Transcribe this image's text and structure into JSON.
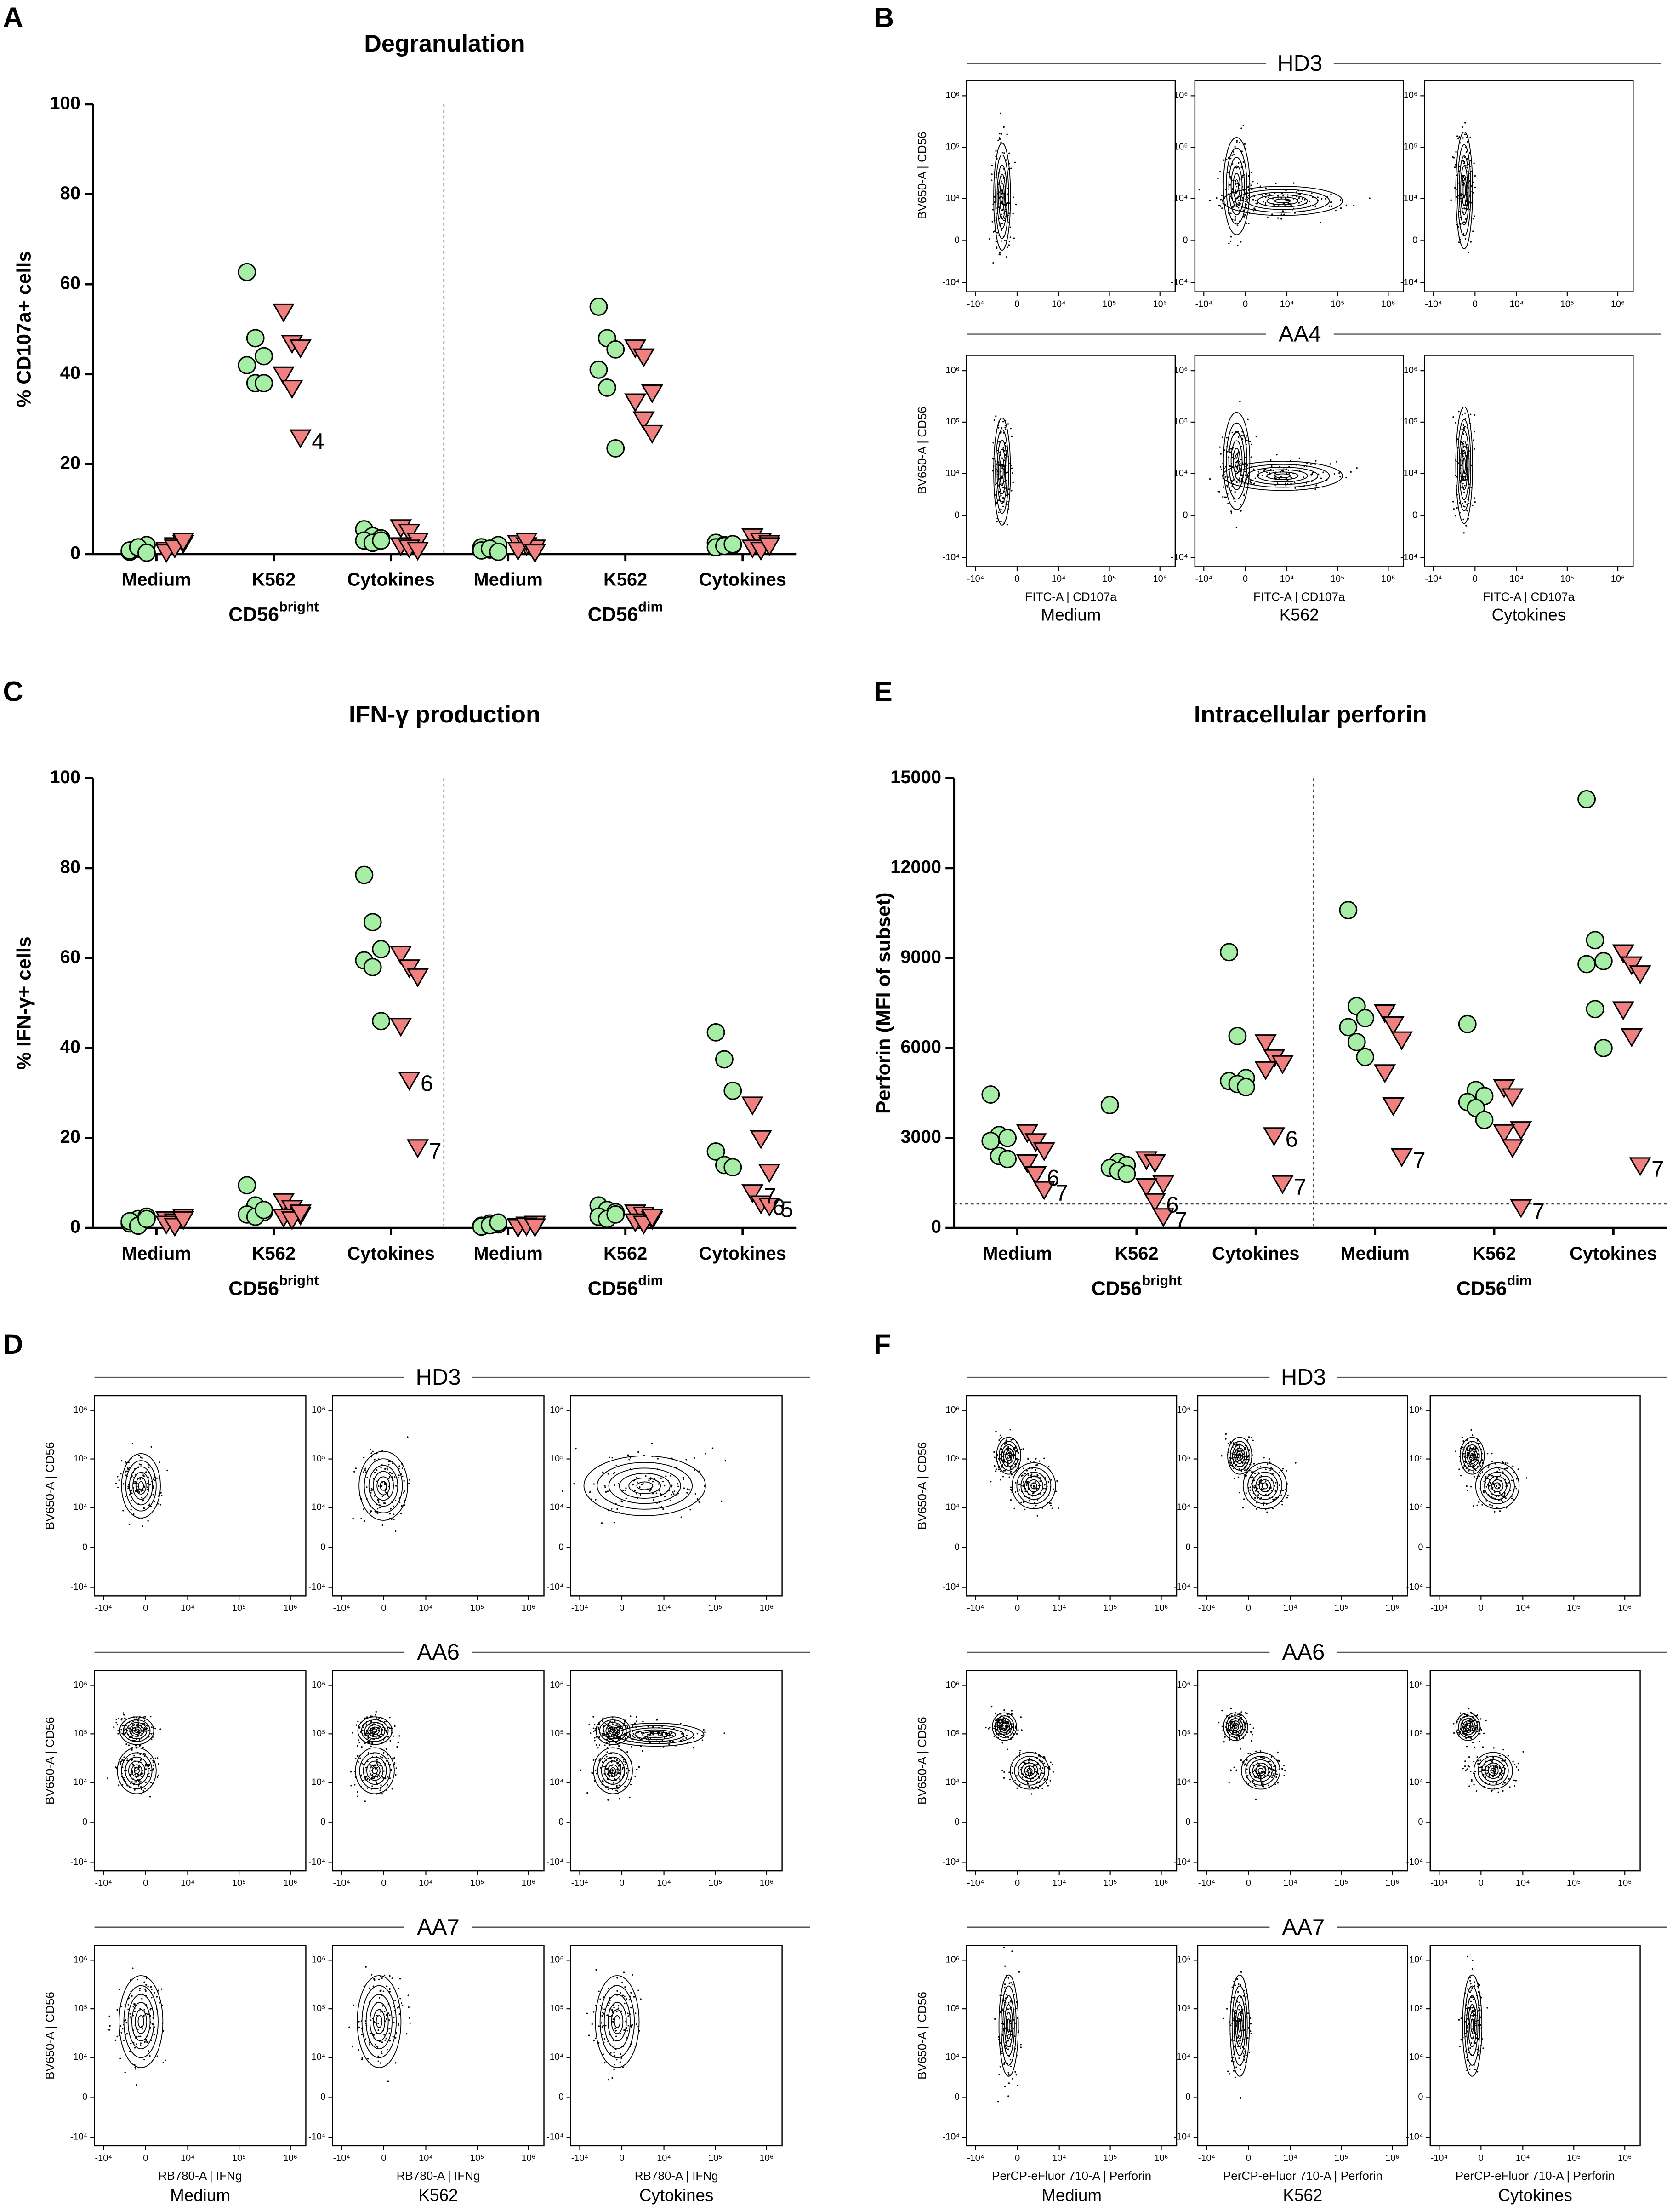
{
  "chart_data": [
    {
      "type": "dot",
      "panel": "A",
      "title": "Degranulation",
      "ylabel": "% CD107a+ cells",
      "categories": [
        "Medium",
        "K562",
        "Cytokines",
        "Medium",
        "K562",
        "Cytokines"
      ],
      "groups": [
        {
          "text": "CD56",
          "sup": "bright"
        },
        {
          "text": "CD56",
          "sup": "dim"
        }
      ],
      "ylim": [
        0,
        100
      ],
      "yticks": [
        0,
        20,
        40,
        60,
        80,
        100
      ],
      "series": [
        {
          "color": "#a6eea6",
          "marker": "circle",
          "values": [
            [
              0.5,
              1.2,
              2,
              0.8,
              1.5,
              0.3
            ],
            [
              62.7,
              48,
              44,
              42,
              38,
              38
            ],
            [
              5.5,
              4,
              3.5,
              3,
              2.5,
              3
            ],
            [
              1.5,
              1,
              2,
              0.8,
              1.2,
              0.5
            ],
            [
              55,
              48,
              45.5,
              41,
              37,
              23.5
            ],
            [
              2.5,
              2,
              2,
              1.5,
              1.8,
              2.2
            ]
          ]
        },
        {
          "color": "#f08080",
          "marker": "triangle",
          "values": [
            [
              1,
              2,
              2.5,
              0.5,
              1.5,
              3
            ],
            [
              54,
              47,
              46,
              40,
              37,
              26
            ],
            [
              6,
              5,
              3,
              2,
              1.5,
              1
            ],
            [
              2.5,
              2,
              1.5,
              1,
              3,
              0.5
            ],
            [
              46,
              44,
              36,
              34,
              30,
              27
            ],
            [
              4,
              3,
              2.5,
              1.5,
              1,
              2
            ]
          ]
        }
      ],
      "annotations": [
        {
          "text": "4",
          "series": 1,
          "category": 1,
          "point": 5
        }
      ]
    },
    {
      "type": "flow",
      "panel": "B",
      "rows": [
        "HD3",
        "AA4"
      ],
      "columns": [
        "Medium",
        "K562",
        "Cytokines"
      ],
      "xlabel": "FITC-A | CD107a",
      "ylabel": "BV650-A | CD56",
      "xlim": [
        -15000,
        2000000
      ],
      "ylim": [
        -15000,
        2000000
      ],
      "xticks": [
        {
          "value": -10000,
          "label": "-10⁴"
        },
        0,
        {
          "value": 10000,
          "label": "10⁴"
        },
        {
          "value": 100000,
          "label": "10⁵"
        },
        {
          "value": 1000000,
          "label": "10⁶"
        }
      ],
      "yticks": [
        {
          "value": -10000,
          "label": "-10⁴"
        },
        0,
        {
          "value": 10000,
          "label": "10⁴"
        },
        {
          "value": 100000,
          "label": "10⁵"
        },
        {
          "value": 1000000,
          "label": "10⁶"
        }
      ]
    },
    {
      "type": "dot",
      "panel": "C",
      "title": "IFN-γ production",
      "ylabel": "% IFN-γ+ cells",
      "categories": [
        "Medium",
        "K562",
        "Cytokines",
        "Medium",
        "K562",
        "Cytokines"
      ],
      "groups": [
        {
          "text": "CD56",
          "sup": "bright"
        },
        {
          "text": "CD56",
          "sup": "dim"
        }
      ],
      "ylim": [
        0,
        100
      ],
      "yticks": [
        0,
        20,
        40,
        60,
        80,
        100
      ],
      "series": [
        {
          "color": "#a6eea6",
          "marker": "circle",
          "values": [
            [
              1,
              2,
              2.5,
              1.5,
              0.5,
              2
            ],
            [
              9.5,
              5,
              3.5,
              3,
              2.5,
              4
            ],
            [
              78.5,
              68,
              62,
              59.5,
              58,
              46
            ],
            [
              0.5,
              1,
              0.8,
              0.3,
              0.6,
              1.2
            ],
            [
              5,
              4,
              3.5,
              2.5,
              2,
              3
            ],
            [
              43.5,
              37.5,
              30.5,
              17,
              14,
              13.5
            ]
          ]
        },
        {
          "color": "#f08080",
          "marker": "triangle",
          "values": [
            [
              2,
              1.5,
              2.5,
              1,
              0.5,
              2
            ],
            [
              6,
              4.5,
              3,
              2.5,
              2,
              3.5
            ],
            [
              61,
              58,
              56,
              45,
              33,
              18
            ],
            [
              0.5,
              0.8,
              1,
              0.3,
              0.6,
              0.4
            ],
            [
              3.5,
              3,
              2,
              1.5,
              1,
              2.5
            ],
            [
              27.5,
              20,
              12.5,
              8,
              5.5,
              5
            ]
          ]
        }
      ],
      "annotations": [
        {
          "text": "6",
          "series": 1,
          "category": 2,
          "point": 4
        },
        {
          "text": "7",
          "series": 1,
          "category": 2,
          "point": 5
        },
        {
          "text": "7",
          "series": 1,
          "category": 5,
          "point": 3
        },
        {
          "text": "6",
          "series": 1,
          "category": 5,
          "point": 4
        },
        {
          "text": "5",
          "series": 1,
          "category": 5,
          "point": 5
        }
      ]
    },
    {
      "type": "dot",
      "panel": "E",
      "title": "Intracellular perforin",
      "ylabel": "Perforin (MFI of subset)",
      "categories": [
        "Medium",
        "K562",
        "Cytokines",
        "Medium",
        "K562",
        "Cytokines"
      ],
      "groups": [
        {
          "text": "CD56",
          "sup": "bright"
        },
        {
          "text": "CD56",
          "sup": "dim"
        }
      ],
      "ylim": [
        0,
        15000
      ],
      "yticks": [
        0,
        3000,
        6000,
        9000,
        12000,
        15000
      ],
      "hline": 800,
      "series": [
        {
          "color": "#a6eea6",
          "marker": "circle",
          "values": [
            [
              4450,
              3100,
              3000,
              2900,
              2400,
              2300
            ],
            [
              4100,
              2200,
              2100,
              2000,
              1900,
              1800
            ],
            [
              9200,
              6400,
              5000,
              4900,
              4800,
              4700
            ],
            [
              10600,
              7400,
              7000,
              6700,
              6200,
              5700
            ],
            [
              6800,
              4600,
              4400,
              4200,
              4000,
              3600
            ],
            [
              14300,
              9600,
              8900,
              8800,
              7300,
              6000
            ]
          ]
        },
        {
          "color": "#f08080",
          "marker": "triangle",
          "values": [
            [
              3200,
              2900,
              2600,
              2200,
              1800,
              1300
            ],
            [
              2300,
              2200,
              1500,
              1400,
              900,
              400
            ],
            [
              6200,
              5700,
              5500,
              5300,
              3100,
              1500
            ],
            [
              7200,
              6800,
              6300,
              5200,
              4100,
              2400
            ],
            [
              4700,
              4400,
              3300,
              3200,
              2700,
              700
            ],
            [
              9200,
              8800,
              8500,
              7300,
              6400,
              2100
            ]
          ]
        }
      ],
      "annotations": [
        {
          "text": "6",
          "series": 1,
          "category": 0,
          "point": 4
        },
        {
          "text": "7",
          "series": 1,
          "category": 0,
          "point": 5
        },
        {
          "text": "6",
          "series": 1,
          "category": 1,
          "point": 4
        },
        {
          "text": "7",
          "series": 1,
          "category": 1,
          "point": 5
        },
        {
          "text": "6",
          "series": 1,
          "category": 2,
          "point": 4
        },
        {
          "text": "7",
          "series": 1,
          "category": 2,
          "point": 5
        },
        {
          "text": "7",
          "series": 1,
          "category": 3,
          "point": 5
        },
        {
          "text": "7",
          "series": 1,
          "category": 4,
          "point": 5
        },
        {
          "text": "7",
          "series": 1,
          "category": 5,
          "point": 5
        }
      ]
    },
    {
      "type": "flow",
      "panel": "D",
      "rows": [
        "HD3",
        "AA6",
        "AA7"
      ],
      "columns": [
        "Medium",
        "K562",
        "Cytokines"
      ],
      "xlabel": "RB780-A | IFNg",
      "ylabel": "BV650-A | CD56",
      "xlim": [
        -15000,
        2000000
      ],
      "ylim": [
        -15000,
        2000000
      ],
      "xticks": [
        {
          "value": -10000,
          "label": "-10⁴"
        },
        0,
        {
          "value": 10000,
          "label": "10⁴"
        },
        {
          "value": 100000,
          "label": "10⁵"
        },
        {
          "value": 1000000,
          "label": "10⁶"
        }
      ],
      "yticks": [
        {
          "value": -10000,
          "label": "-10⁴"
        },
        0,
        {
          "value": 10000,
          "label": "10⁴"
        },
        {
          "value": 100000,
          "label": "10⁵"
        },
        {
          "value": 1000000,
          "label": "10⁶"
        }
      ]
    },
    {
      "type": "flow",
      "panel": "F",
      "rows": [
        "HD3",
        "AA6",
        "AA7"
      ],
      "columns": [
        "Medium",
        "K562",
        "Cytokines"
      ],
      "xlabel": "PerCP-eFluor 710-A | Perforin",
      "ylabel": "BV650-A | CD56",
      "xlim": [
        -15000,
        2000000
      ],
      "ylim": [
        -15000,
        2000000
      ],
      "xticks": [
        {
          "value": -10000,
          "label": "-10⁴"
        },
        0,
        {
          "value": 10000,
          "label": "10⁴"
        },
        {
          "value": 100000,
          "label": "10⁵"
        },
        {
          "value": 1000000,
          "label": "10⁶"
        }
      ],
      "yticks": [
        {
          "value": -10000,
          "label": "-10⁴"
        },
        0,
        {
          "value": 10000,
          "label": "10⁴"
        },
        {
          "value": 100000,
          "label": "10⁵"
        },
        {
          "value": 1000000,
          "label": "10⁶"
        }
      ]
    }
  ]
}
